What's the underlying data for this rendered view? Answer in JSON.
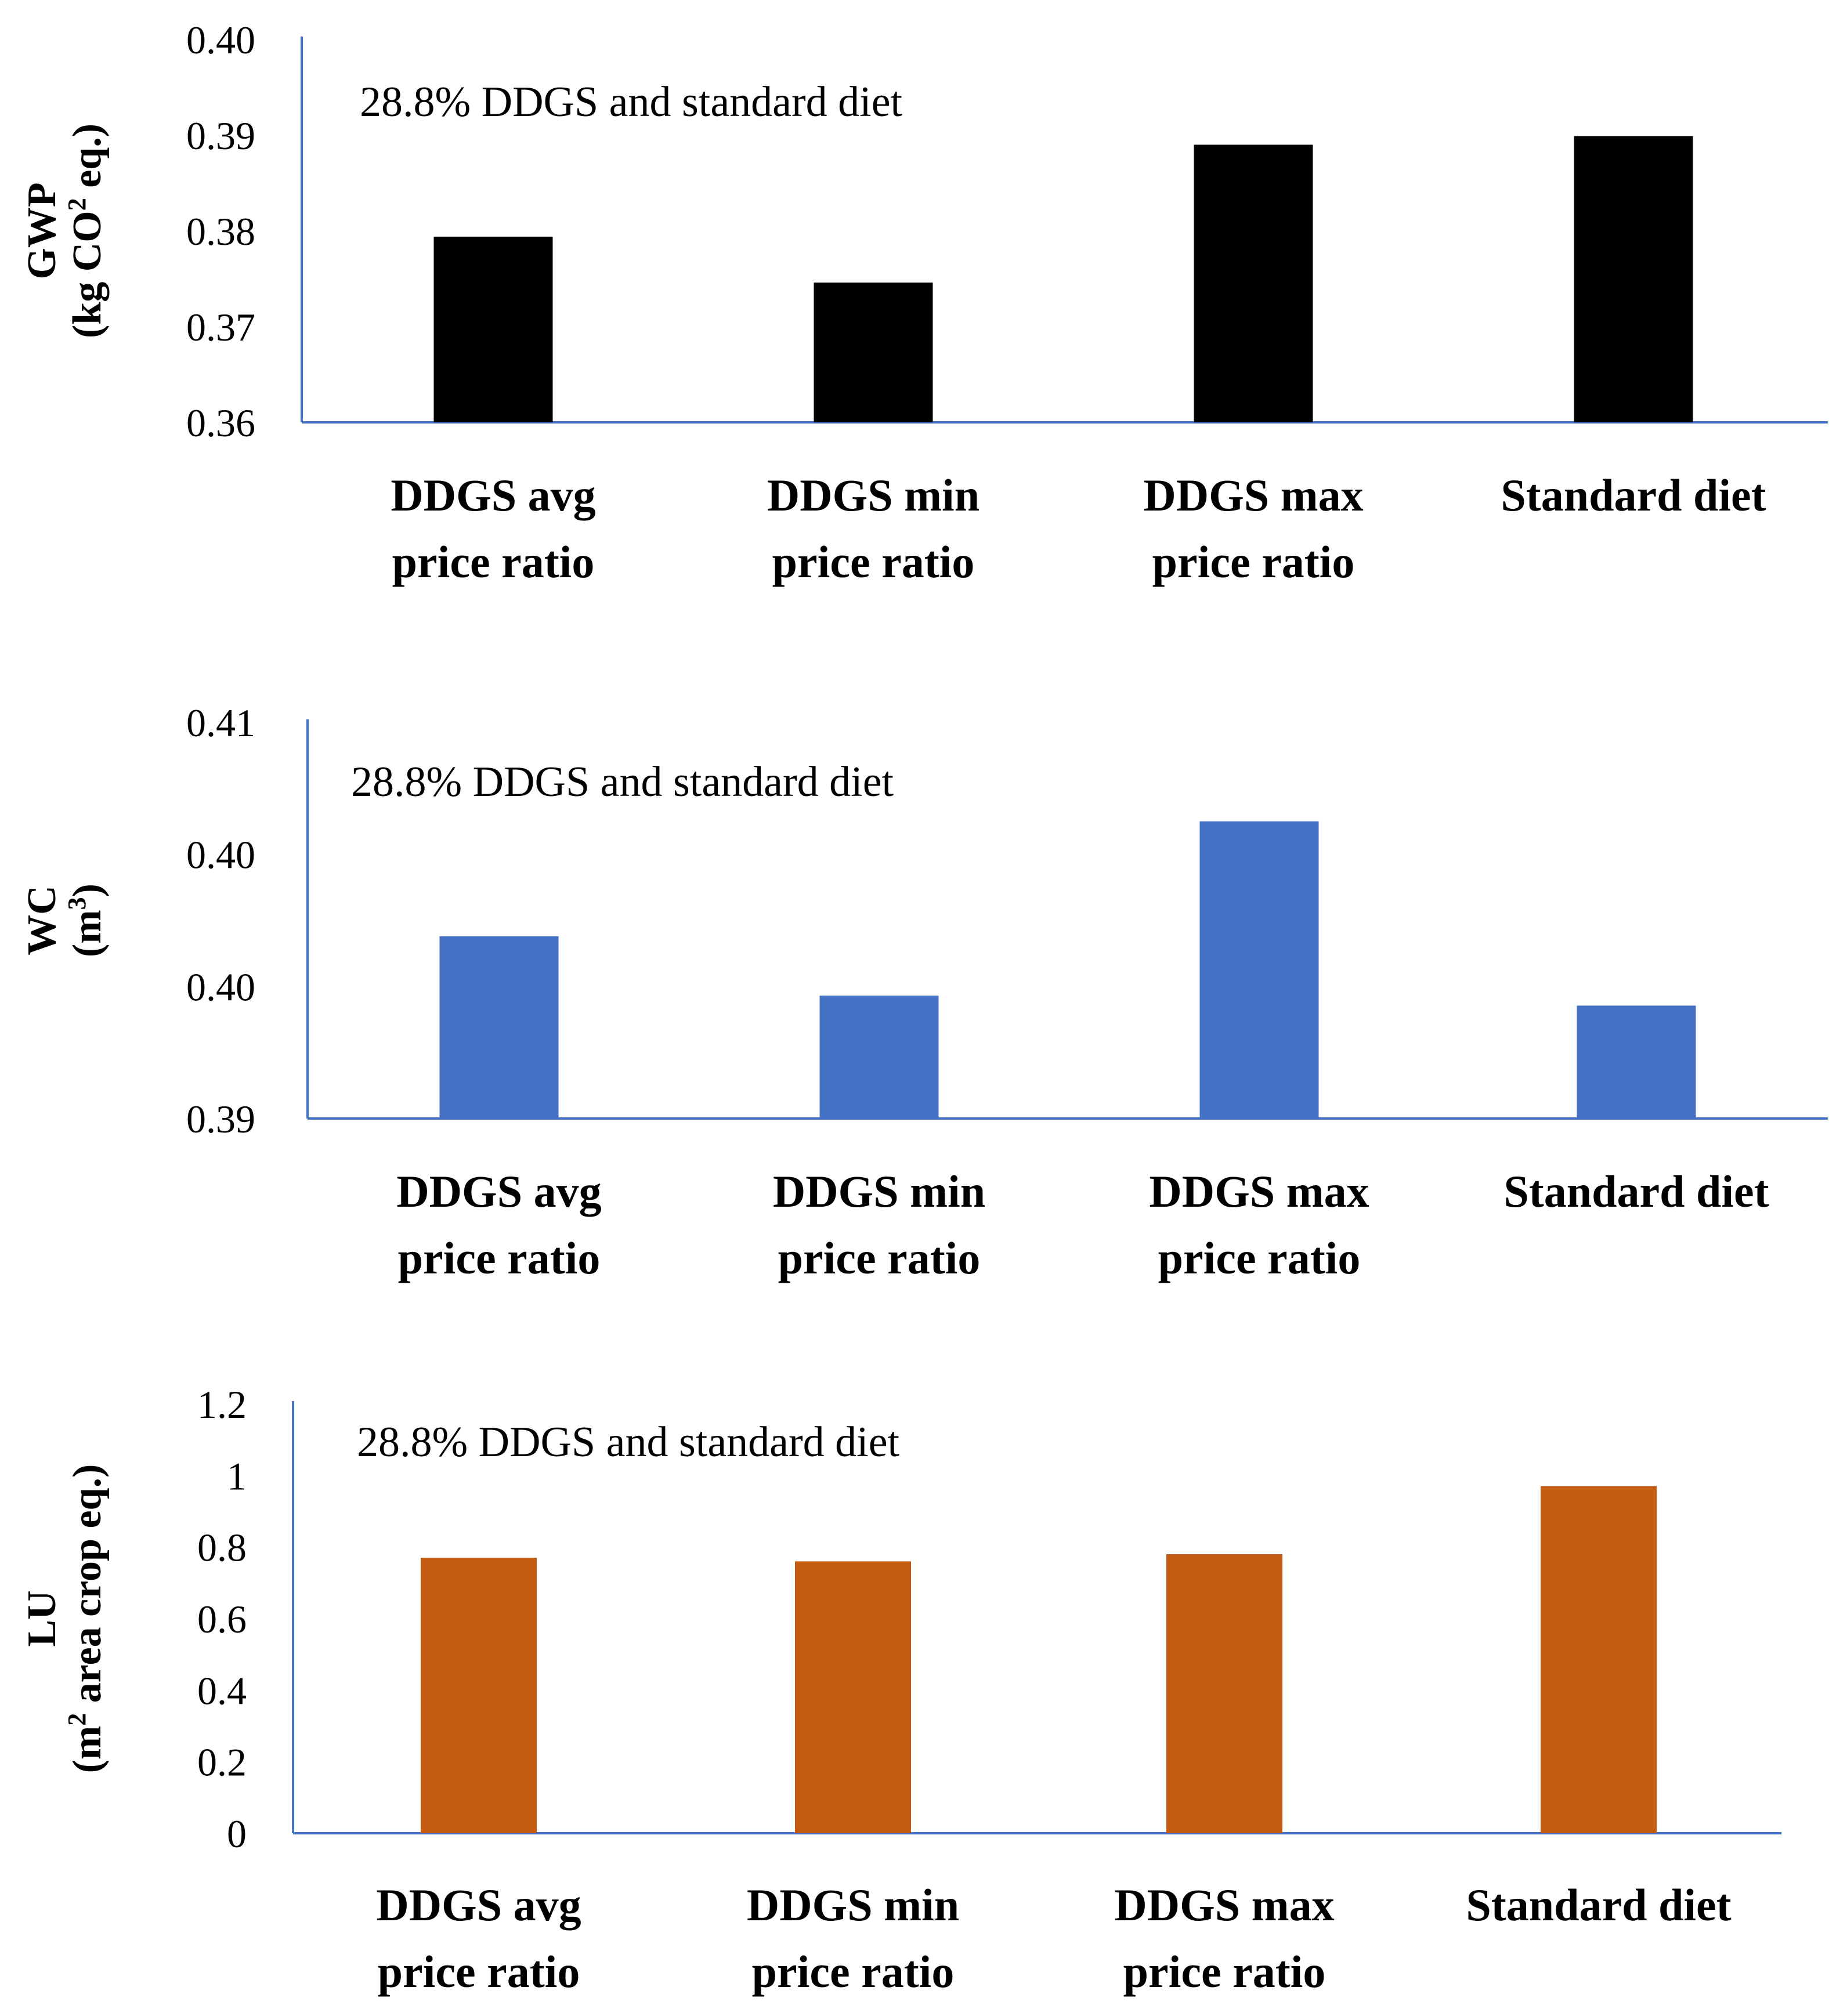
{
  "chart_data": [
    {
      "type": "bar",
      "annotation": "28.8% DDGS and standard diet",
      "ylabel": [
        "GWP",
        "(kg CO",
        "2",
        " eq.)"
      ],
      "xlabel": "",
      "ylim": [
        0.36,
        0.4
      ],
      "ticks": [
        "0.40",
        "0.39",
        "0.38",
        "0.37",
        "0.36"
      ],
      "tick_values": [
        0.4,
        0.39,
        0.38,
        0.37,
        0.36
      ],
      "categories": [
        [
          "DDGS avg",
          "price ratio"
        ],
        [
          "DDGS min",
          "price ratio"
        ],
        [
          "DDGS max",
          "price ratio"
        ],
        [
          "Standard diet"
        ]
      ],
      "values": [
        0.3794,
        0.3746,
        0.389,
        0.3899
      ],
      "color": "#000000"
    },
    {
      "type": "bar",
      "annotation": "28.8% DDGS and standard diet",
      "ylabel": [
        "WC",
        "(m",
        "3",
        ")"
      ],
      "xlabel": "",
      "ylim": [
        0.39,
        0.41
      ],
      "ticks": [
        "0.41",
        "0.40",
        "0.40",
        "0.39"
      ],
      "tick_values": [
        0.41,
        0.4033,
        0.3967,
        0.39
      ],
      "categories": [
        [
          "DDGS avg",
          "price ratio"
        ],
        [
          "DDGS min",
          "price ratio"
        ],
        [
          "DDGS max",
          "price ratio"
        ],
        [
          "Standard diet"
        ]
      ],
      "values": [
        0.3992,
        0.3962,
        0.405,
        0.3957
      ],
      "color": "#4472C4"
    },
    {
      "type": "bar",
      "annotation": "28.8% DDGS and standard diet",
      "ylabel": [
        "LU",
        "(m",
        "2",
        " area crop eq.)"
      ],
      "xlabel": "",
      "ylim": [
        0,
        1.2
      ],
      "ticks": [
        "1.2",
        "1",
        "0.8",
        "0.6",
        "0.4",
        "0.2",
        "0"
      ],
      "tick_values": [
        1.2,
        1.0,
        0.8,
        0.6,
        0.4,
        0.2,
        0
      ],
      "categories": [
        [
          "DDGS avg",
          "price ratio"
        ],
        [
          "DDGS min",
          "price ratio"
        ],
        [
          "DDGS max",
          "price ratio"
        ],
        [
          "Standard diet"
        ]
      ],
      "values": [
        0.77,
        0.76,
        0.78,
        0.97
      ],
      "color": "#C55A11"
    }
  ]
}
